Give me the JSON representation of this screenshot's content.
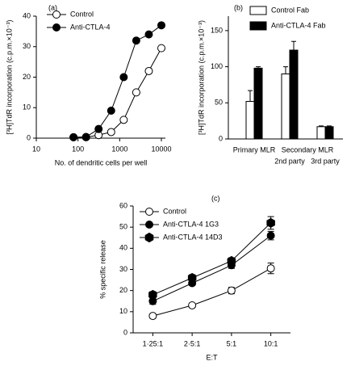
{
  "chart_data": [
    {
      "type": "line",
      "panel_label": "(a)",
      "x_label": "No. of dendritic cells per well",
      "y_label": "[³H]TdR incorporation (c.p.m.×10⁻³)",
      "xscale": "log",
      "xlim": [
        10,
        10000
      ],
      "xticks": [
        10,
        100,
        1000,
        10000
      ],
      "ylim": [
        0,
        40
      ],
      "yticks": [
        0,
        10,
        20,
        30,
        40
      ],
      "x": [
        78,
        156,
        312,
        625,
        1250,
        2500,
        5000,
        10000
      ],
      "series": [
        {
          "name": "Control",
          "color": "#ffffff",
          "marker": "circle",
          "values": [
            0.3,
            0.3,
            1,
            2,
            6,
            15,
            22,
            29.5
          ]
        },
        {
          "name": "Anti-CTLA-4",
          "color": "#000000",
          "marker": "circle",
          "values": [
            0.3,
            0.4,
            3,
            9,
            20,
            32,
            34,
            37
          ]
        }
      ]
    },
    {
      "type": "bar",
      "panel_label": "(b)",
      "y_label": "[³H]TdR incorporation (c.p.m.×10⁻³)",
      "categories": [
        "Primary MLR",
        "2nd party",
        "3rd party"
      ],
      "group_label": "Secondary MLR",
      "ylim": [
        0,
        170
      ],
      "yticks": [
        0,
        50,
        100,
        150
      ],
      "series": [
        {
          "name": "Control Fab",
          "color": "#ffffff",
          "values": [
            52,
            90,
            17
          ],
          "errors": [
            15,
            10,
            1
          ]
        },
        {
          "name": "Anti-CTLA-4 Fab",
          "color": "#000000",
          "values": [
            98,
            123,
            17
          ],
          "errors": [
            2,
            12,
            1
          ]
        }
      ]
    },
    {
      "type": "line",
      "panel_label": "(c)",
      "x_label": "E:T",
      "y_label": "% specific release",
      "categories": [
        "1·25:1",
        "2·5:1",
        "5:1",
        "10:1"
      ],
      "ylim": [
        0,
        60
      ],
      "yticks": [
        0,
        10,
        20,
        30,
        40,
        50,
        60
      ],
      "series": [
        {
          "name": "Control",
          "color": "#ffffff",
          "marker": "circle",
          "values": [
            8,
            13,
            20,
            30.5
          ],
          "errors": [
            1,
            1,
            1.5,
            2.5
          ]
        },
        {
          "name": "Anti-CTLA-4 1G3",
          "color": "#000000",
          "marker": "circle",
          "values": [
            15,
            23.5,
            32,
            46
          ],
          "errors": [
            1.5,
            1,
            1.5,
            2
          ]
        },
        {
          "name": "Anti-CTLA-4 14D3",
          "color": "#000000",
          "marker": "hexagon",
          "values": [
            18,
            26,
            34,
            52
          ],
          "errors": [
            1.5,
            1.5,
            1.5,
            3
          ]
        }
      ]
    }
  ]
}
